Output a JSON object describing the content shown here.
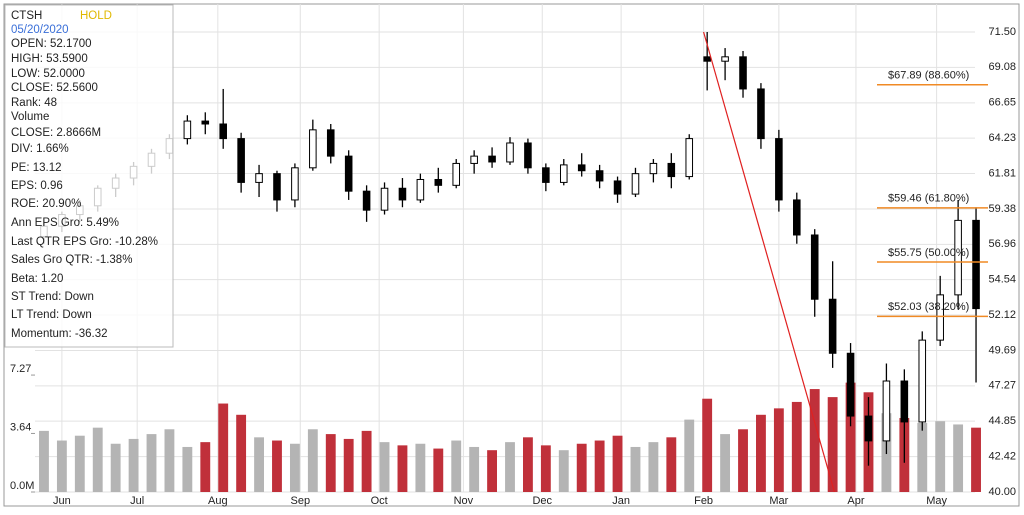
{
  "chart_data": {
    "type": "candlestick",
    "info_panel": {
      "symbol": "CTSH",
      "rating": "HOLD",
      "date": "05/20/2020",
      "lines": [
        "OPEN: 52.1700",
        "HIGH: 53.5900",
        "LOW: 52.0000",
        "CLOSE: 52.5600",
        "Rank: 48",
        "Volume",
        "CLOSE: 2.8666M",
        "DIV: 1.66%",
        "PE: 13.12",
        "EPS: 0.96",
        "ROE: 20.90%",
        "Ann EPS Gro: 5.49%",
        "Last QTR EPS Gro: -10.28%",
        "Sales Gro QTR: -1.38%",
        "Beta: 1.20",
        "ST Trend: Down",
        "LT Trend: Down",
        "Momentum: -36.32"
      ]
    },
    "x": [
      0.5,
      1.5,
      2.5,
      3.5,
      4.5,
      5.5,
      6.5,
      7.5,
      8.5,
      9.5,
      10.5,
      11.5,
      12.5,
      13.5,
      14.5,
      15.5,
      16.5,
      17.5,
      18.5,
      19.5,
      20.5,
      21.5,
      22.5,
      23.5,
      24.5,
      25.5,
      26.5,
      27.5,
      28.5,
      29.5,
      30.5,
      31.5,
      32.5,
      33.5,
      34.5,
      35.5,
      36.5,
      37.5,
      38.5,
      39.5,
      40.5,
      41.5,
      42.5,
      43.5,
      44.5,
      45.5,
      46.5,
      47.5,
      48.5,
      49.5,
      50.5,
      51.5,
      52.5
    ],
    "open": [
      57.5,
      58.2,
      59,
      59.6,
      60.8,
      61.5,
      62.3,
      63.2,
      64.2,
      65.4,
      65.2,
      64.2,
      61.2,
      61.8,
      60,
      62.2,
      64.8,
      63,
      60.6,
      59.3,
      60.8,
      60,
      61.4,
      61,
      62.5,
      63,
      62.6,
      63.9,
      62.2,
      61.2,
      62.4,
      62,
      61.3,
      60.4,
      61.8,
      62.5,
      61.6,
      69.8,
      69.5,
      69.8,
      67.6,
      64.2,
      60,
      57.6,
      53.2,
      49.5,
      45.2,
      43.5,
      47.6,
      44.8,
      50.4,
      53.5,
      58.6
    ],
    "high": [
      58.6,
      59.2,
      60,
      61,
      61.8,
      62.6,
      63.5,
      64.5,
      65.8,
      66,
      67.6,
      64.6,
      62.4,
      62,
      62.5,
      65.5,
      65.2,
      63.4,
      61,
      61.2,
      61.5,
      61.8,
      62.2,
      62.8,
      63.4,
      63.6,
      64.3,
      64.2,
      62.5,
      62.8,
      63.2,
      62.4,
      61.6,
      62.2,
      62.8,
      63.2,
      64.5,
      71.5,
      70.4,
      70.2,
      68,
      64.8,
      60.5,
      58,
      55.8,
      50.2,
      46.5,
      48.8,
      48.4,
      51,
      54.8,
      60,
      59.5
    ],
    "low": [
      57,
      57.8,
      58.5,
      59.2,
      60.2,
      61,
      61.8,
      62.8,
      63.8,
      64.5,
      63.5,
      60.5,
      60.2,
      59.2,
      59.5,
      62,
      62.5,
      60,
      58.5,
      59,
      59.5,
      59.8,
      60.5,
      60.8,
      61.8,
      62.2,
      62.4,
      61.8,
      60.6,
      61,
      61.6,
      60.8,
      59.8,
      60.2,
      61.2,
      60.8,
      61.4,
      67.5,
      68.2,
      67,
      63.5,
      59.2,
      57,
      52,
      48.5,
      44.5,
      41.8,
      42.6,
      42,
      44.2,
      50,
      52.5,
      47.5
    ],
    "close": [
      58.2,
      59,
      59.6,
      60.8,
      61.5,
      62.3,
      63.2,
      64.2,
      65.4,
      65.2,
      64.2,
      61.2,
      61.8,
      60,
      62.2,
      64.8,
      63,
      60.6,
      59.3,
      60.8,
      60,
      61.4,
      61,
      62.5,
      63,
      62.6,
      63.9,
      62.2,
      61.2,
      62.4,
      62,
      61.3,
      60.4,
      61.8,
      62.5,
      61.6,
      64.2,
      69.5,
      69.8,
      67.6,
      64.2,
      60,
      57.6,
      53.2,
      49.5,
      45.2,
      43.5,
      47.6,
      44.8,
      50.4,
      53.5,
      58.6,
      52.56
    ],
    "candle_color": "#000000",
    "volume": [
      3.8,
      3.2,
      3.5,
      4.0,
      3.0,
      3.3,
      3.6,
      3.9,
      2.8,
      3.1,
      5.5,
      4.8,
      3.4,
      3.2,
      3.0,
      3.9,
      3.6,
      3.3,
      3.8,
      3.1,
      2.9,
      3.0,
      2.7,
      3.2,
      2.8,
      2.6,
      3.1,
      3.4,
      2.9,
      2.6,
      3.0,
      3.2,
      3.5,
      2.8,
      3.1,
      3.4,
      4.5,
      5.8,
      3.6,
      3.9,
      4.8,
      5.2,
      5.6,
      6.4,
      5.9,
      6.8,
      6.2,
      4.9,
      4.6,
      4.3,
      4.4,
      4.2,
      4.0
    ],
    "volume_up_color": "#b4b4b4",
    "volume_down_color": "#c0303a",
    "xlim": [
      0,
      53
    ],
    "xticks": [
      {
        "value": 1.5,
        "label": "Jun"
      },
      {
        "value": 5.7,
        "label": "Jul"
      },
      {
        "value": 10.2,
        "label": "Aug"
      },
      {
        "value": 14.8,
        "label": "Sep"
      },
      {
        "value": 19.2,
        "label": "Oct"
      },
      {
        "value": 23.9,
        "label": "Nov"
      },
      {
        "value": 28.3,
        "label": "Dec"
      },
      {
        "value": 32.7,
        "label": "Jan"
      },
      {
        "value": 37.3,
        "label": "Feb"
      },
      {
        "value": 41.5,
        "label": "Mar"
      },
      {
        "value": 45.8,
        "label": "Apr"
      },
      {
        "value": 50.3,
        "label": "May"
      }
    ],
    "ylim": [
      40,
      71.5
    ],
    "yticks": [
      {
        "value": 71.5,
        "label": "71.50"
      },
      69.08,
      66.65,
      64.23,
      61.81,
      59.38,
      56.96,
      54.54,
      52.12,
      49.69,
      47.27,
      44.85,
      42.42,
      {
        "value": 40,
        "label": "40.00"
      }
    ],
    "y2lim": [
      0,
      28.6
    ],
    "y2ticks": [
      {
        "value": 0,
        "label": "0.0M"
      },
      3.64,
      7.27
    ],
    "grid": true,
    "fib_color": "#f08a24",
    "fib_levels": [
      {
        "value": 67.89,
        "label": "$67.89 (88.60%)"
      },
      {
        "value": 59.46,
        "label": "$59.46 (61.80%)"
      },
      {
        "value": 55.75,
        "label": "$55.75 (50.00%)"
      },
      {
        "value": 52.03,
        "label": "$52.03 (38.20%)"
      }
    ],
    "trend_line": {
      "x": [
        37.3,
        44.6
      ],
      "y": [
        71.5,
        40
      ],
      "color": "#e02020"
    }
  }
}
